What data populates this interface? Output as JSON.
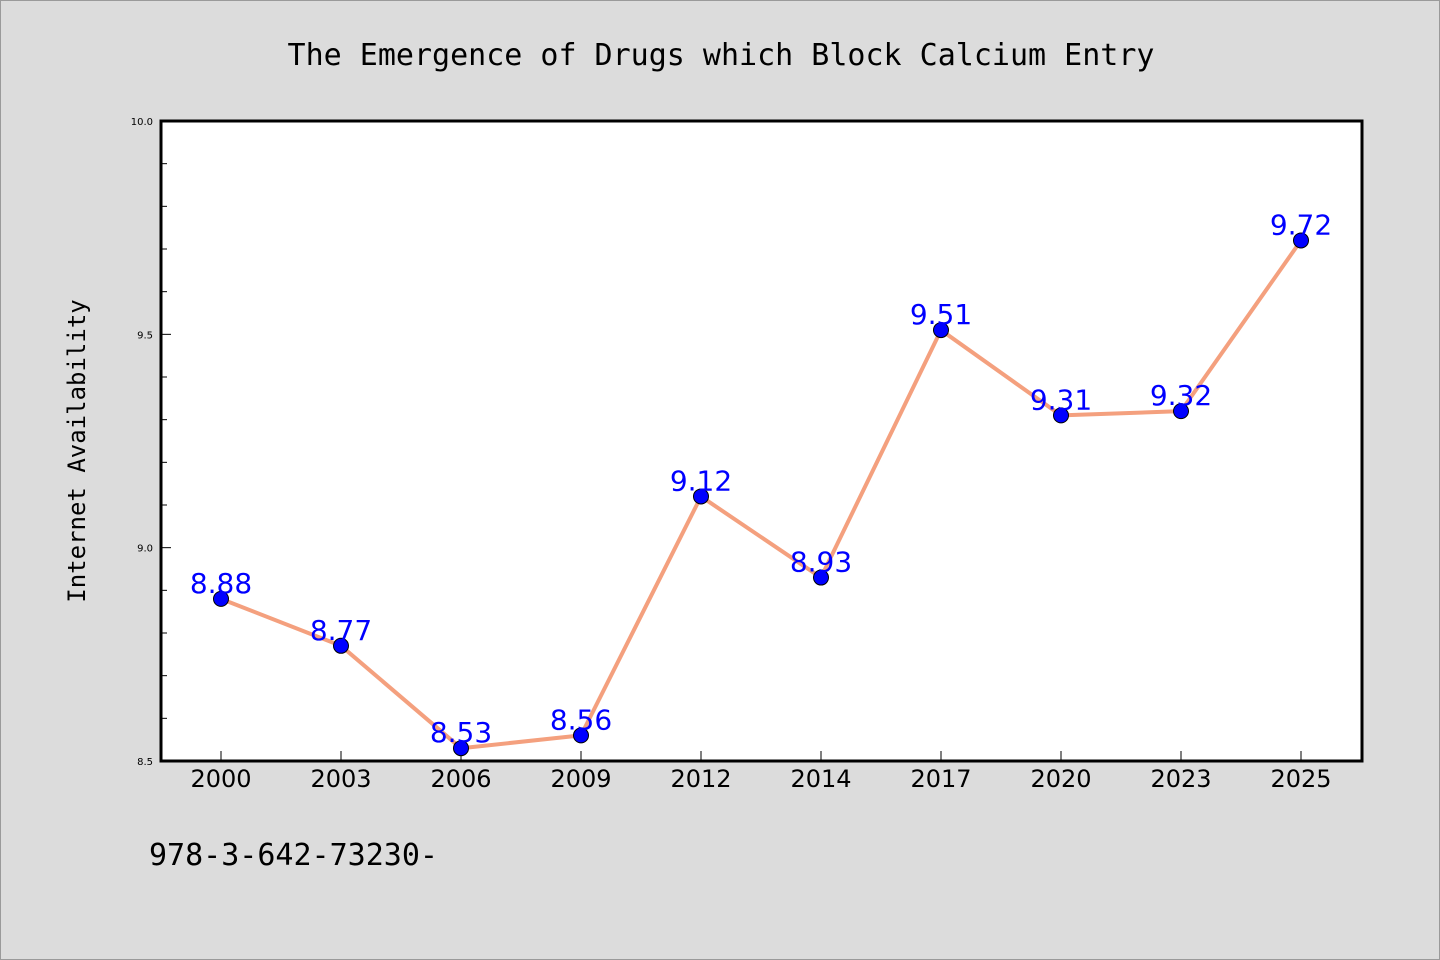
{
  "chart_data": {
    "type": "line",
    "title": "The Emergence of Drugs which Block Calcium Entry",
    "xlabel": "",
    "ylabel": "Internet Availability",
    "categories": [
      "2000",
      "2003",
      "2006",
      "2009",
      "2012",
      "2014",
      "2017",
      "2020",
      "2023",
      "2025"
    ],
    "series": [
      {
        "values": [
          8.88,
          8.77,
          8.53,
          8.56,
          9.12,
          8.93,
          9.51,
          9.31,
          9.32,
          9.72
        ],
        "data_labels": [
          "8.88",
          "8.77",
          "8.53",
          "8.56",
          "9.12",
          "8.93",
          "9.51",
          "9.31",
          "9.32",
          "9.72"
        ],
        "line_color": "#f4a07e",
        "marker_color": "#0000ff"
      }
    ],
    "ylim": [
      8.5,
      10.0
    ],
    "yticks": [
      "8.5",
      "9.0",
      "9.5",
      "10.0"
    ],
    "y_minor_step": 0.1,
    "grid": false,
    "legend": "none",
    "plot_background": "#ffffff",
    "figure_background": "#dcdcdc",
    "label_color": "#0000ff"
  },
  "footnote": "978-3-642-73230-"
}
